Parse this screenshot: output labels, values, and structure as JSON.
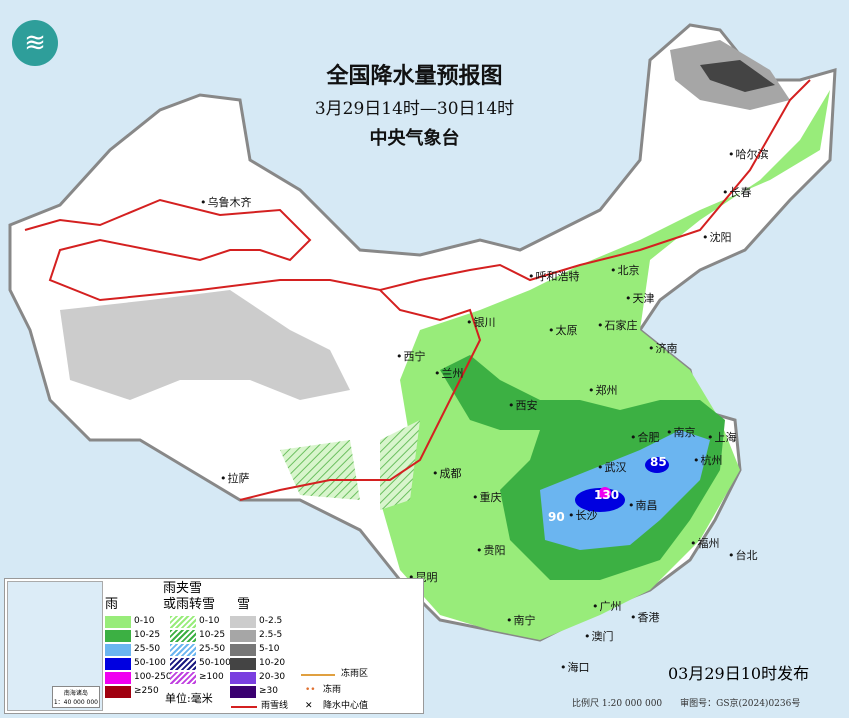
{
  "header": {
    "title": "全国降水量预报图",
    "period": "3月29日14时—30日14时",
    "agency": "中央气象台",
    "logo_icon": "cma-logo-icon"
  },
  "cities": [
    {
      "name": "乌鲁木齐"
    },
    {
      "name": "哈尔滨"
    },
    {
      "name": "长春"
    },
    {
      "name": "沈阳"
    },
    {
      "name": "北京"
    },
    {
      "name": "天津"
    },
    {
      "name": "呼和浩特"
    },
    {
      "name": "银川"
    },
    {
      "name": "太原"
    },
    {
      "name": "石家庄"
    },
    {
      "name": "济南"
    },
    {
      "name": "西宁"
    },
    {
      "name": "兰州"
    },
    {
      "name": "郑州"
    },
    {
      "name": "西安"
    },
    {
      "name": "合肥"
    },
    {
      "name": "南京"
    },
    {
      "name": "上海"
    },
    {
      "name": "杭州"
    },
    {
      "name": "武汉"
    },
    {
      "name": "成都"
    },
    {
      "name": "重庆"
    },
    {
      "name": "长沙"
    },
    {
      "name": "南昌"
    },
    {
      "name": "拉萨"
    },
    {
      "name": "贵阳"
    },
    {
      "name": "福州"
    },
    {
      "name": "台北"
    },
    {
      "name": "昆明"
    },
    {
      "name": "南宁"
    },
    {
      "name": "广州"
    },
    {
      "name": "香港"
    },
    {
      "name": "澳门"
    },
    {
      "name": "海口"
    }
  ],
  "max_values": [
    "85",
    "130",
    "90"
  ],
  "legend": {
    "rain_title": "雨",
    "rain": [
      {
        "label": "0-10",
        "color": "#98ec7a"
      },
      {
        "label": "10-25",
        "color": "#3cb043"
      },
      {
        "label": "25-50",
        "color": "#6bb5f0"
      },
      {
        "label": "50-100",
        "color": "#0000e0"
      },
      {
        "label": "100-250",
        "color": "#f000f0"
      },
      {
        "label": "≥250",
        "color": "#a00010"
      }
    ],
    "mix_title_1": "雨夹雪",
    "mix_title_2": "或雨转雪",
    "mix": [
      {
        "label": "0-10",
        "color": "#98ec7a"
      },
      {
        "label": "10-25",
        "color": "#3cb043"
      },
      {
        "label": "25-50",
        "color": "#6bb5f0"
      },
      {
        "label": "50-100",
        "color": "#1a1a80"
      },
      {
        "label": "≥100",
        "color": "#c040e0"
      }
    ],
    "snow_title": "雪",
    "snow": [
      {
        "label": "0-2.5",
        "color": "#cccccc"
      },
      {
        "label": "2.5-5",
        "color": "#a6a6a6"
      },
      {
        "label": "5-10",
        "color": "#777777"
      },
      {
        "label": "10-20",
        "color": "#444444"
      },
      {
        "label": "20-30",
        "color": "#7a3fe0"
      },
      {
        "label": "≥30",
        "color": "#3a0070"
      }
    ],
    "unit": "单位:毫米",
    "freezing_zone": "冻雨区",
    "freezing_rain": "冻雨",
    "snow_line": "雨雪线",
    "center_value": "降水中心值",
    "inset_title": "南海诸岛",
    "inset_scale": "1：40 000 000"
  },
  "issue_time": "03月29日10时发布",
  "footer": {
    "scale": "比例尺 1:20 000 000",
    "approval": "审图号：GS京(2024)0236号"
  },
  "colors": {
    "sea": "#d6e9f5",
    "land": "#ffffff",
    "front": "#d42020",
    "border": "#888888"
  }
}
